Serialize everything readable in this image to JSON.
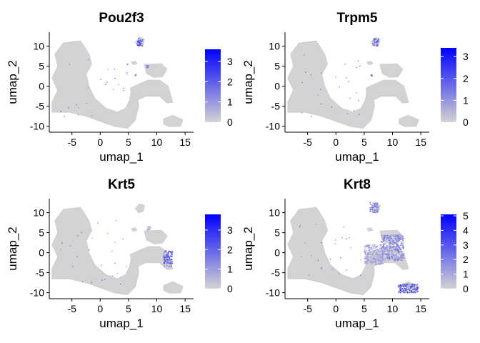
{
  "chart_data": [
    {
      "type": "scatter",
      "title": "Pou2f3",
      "xlabel": "umap_1",
      "ylabel": "umap_2",
      "xticks": [
        "-5",
        "0",
        "5",
        "10",
        "15"
      ],
      "yticks": [
        "-10",
        "-5",
        "0",
        "5",
        "10"
      ],
      "xlim": [
        -9,
        16.5
      ],
      "ylim": [
        -11.5,
        13.5
      ],
      "colorbar": {
        "ticks": [
          "0",
          "1",
          "2",
          "3"
        ],
        "max": 3.6,
        "low_color": "#d3d3d3",
        "high_color": "#0000ff"
      },
      "expressing_regions": [
        {
          "x": [
            6.5,
            7.5
          ],
          "y": [
            10.0,
            12.0
          ],
          "level": 2.0
        },
        {
          "x": [
            8.1,
            8.5
          ],
          "y": [
            4.6,
            5.2
          ],
          "level": 1.5
        },
        {
          "x": [
            6.2,
            6.4
          ],
          "y": [
            2.6,
            2.9
          ],
          "level": 1.2
        }
      ]
    },
    {
      "type": "scatter",
      "title": "Trpm5",
      "xlabel": "umap_1",
      "ylabel": "umap_2",
      "xticks": [
        "-5",
        "0",
        "5",
        "10",
        "15"
      ],
      "yticks": [
        "-10",
        "-5",
        "0",
        "5",
        "10"
      ],
      "xlim": [
        -9,
        16.5
      ],
      "ylim": [
        -11.5,
        13.5
      ],
      "colorbar": {
        "ticks": [
          "0",
          "1",
          "2",
          "3"
        ],
        "max": 3.4,
        "low_color": "#d3d3d3",
        "high_color": "#0000ff"
      },
      "expressing_regions": [
        {
          "x": [
            6.5,
            7.5
          ],
          "y": [
            10.0,
            12.0
          ],
          "level": 1.8
        },
        {
          "x": [
            6.2,
            6.4
          ],
          "y": [
            2.5,
            2.8
          ],
          "level": 1.5
        }
      ]
    },
    {
      "type": "scatter",
      "title": "Krt5",
      "xlabel": "umap_1",
      "ylabel": "umap_2",
      "xticks": [
        "-5",
        "0",
        "5",
        "10",
        "15"
      ],
      "yticks": [
        "-10",
        "-5",
        "0",
        "5",
        "10"
      ],
      "xlim": [
        -9,
        16.5
      ],
      "ylim": [
        -11.5,
        13.5
      ],
      "colorbar": {
        "ticks": [
          "0",
          "1",
          "2",
          "3"
        ],
        "max": 3.8,
        "low_color": "#d3d3d3",
        "high_color": "#0000ff"
      },
      "expressing_regions": [
        {
          "x": [
            11.2,
            12.8
          ],
          "y": [
            -3.5,
            0.5
          ],
          "level": 2.2
        },
        {
          "x": [
            8.3,
            8.9
          ],
          "y": [
            5.5,
            6.5
          ],
          "level": 1.0
        }
      ]
    },
    {
      "type": "scatter",
      "title": "Krt8",
      "xlabel": "umap_1",
      "ylabel": "umap_2",
      "xticks": [
        "-5",
        "0",
        "5",
        "10",
        "15"
      ],
      "yticks": [
        "-10",
        "-5",
        "0",
        "5",
        "10"
      ],
      "xlim": [
        -9,
        16.5
      ],
      "ylim": [
        -11.5,
        13.5
      ],
      "colorbar": {
        "ticks": [
          "0",
          "1",
          "2",
          "3",
          "4",
          "5"
        ],
        "max": 5.1,
        "low_color": "#d3d3d3",
        "high_color": "#0000ff"
      },
      "expressing_regions": [
        {
          "x": [
            11.0,
            14.5
          ],
          "y": [
            -10.0,
            -7.8
          ],
          "level": 3.2
        },
        {
          "x": [
            6.0,
            7.5
          ],
          "y": [
            10.0,
            12.5
          ],
          "level": 2.0
        },
        {
          "x": [
            8.0,
            12.0
          ],
          "y": [
            -2.0,
            4.5
          ],
          "level": 1.8
        },
        {
          "x": [
            5.0,
            8.5
          ],
          "y": [
            -3.0,
            2.0
          ],
          "level": 1.2
        }
      ]
    }
  ]
}
